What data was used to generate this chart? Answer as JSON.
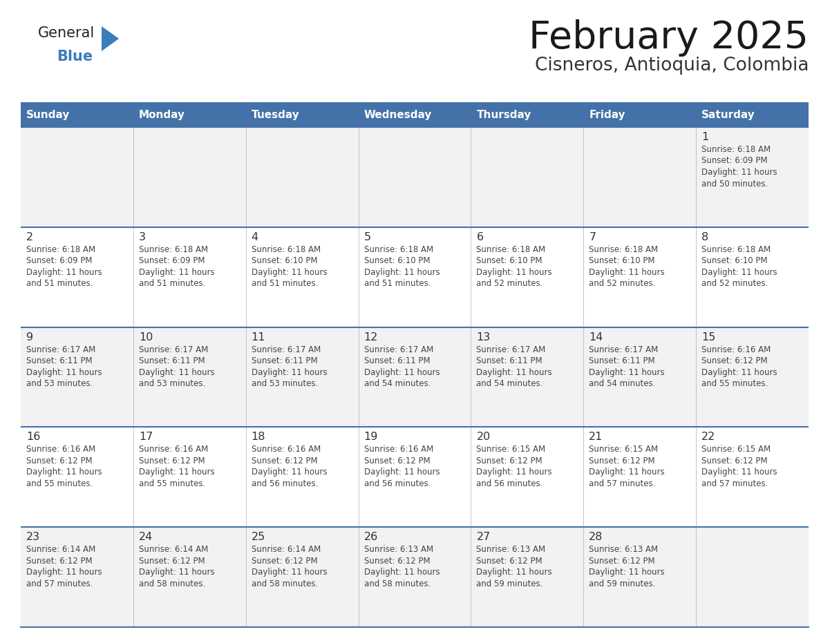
{
  "title": "February 2025",
  "subtitle": "Cisneros, Antioquia, Colombia",
  "header_bg": "#4472a8",
  "header_text": "#ffffff",
  "header_days": [
    "Sunday",
    "Monday",
    "Tuesday",
    "Wednesday",
    "Thursday",
    "Friday",
    "Saturday"
  ],
  "row_bg": [
    "#f2f2f2",
    "#ffffff",
    "#f2f2f2",
    "#ffffff",
    "#f2f2f2"
  ],
  "border_color": "#4472a8",
  "text_color": "#444444",
  "day_num_color": "#333333",
  "logo_general_color": "#222222",
  "logo_blue_color": "#3a7dbf",
  "calendar_data": [
    [
      null,
      null,
      null,
      null,
      null,
      null,
      {
        "day": 1,
        "sunrise": "6:18 AM",
        "sunset": "6:09 PM",
        "daylight": "11 hours and 50 minutes."
      }
    ],
    [
      {
        "day": 2,
        "sunrise": "6:18 AM",
        "sunset": "6:09 PM",
        "daylight": "11 hours and 51 minutes."
      },
      {
        "day": 3,
        "sunrise": "6:18 AM",
        "sunset": "6:09 PM",
        "daylight": "11 hours and 51 minutes."
      },
      {
        "day": 4,
        "sunrise": "6:18 AM",
        "sunset": "6:10 PM",
        "daylight": "11 hours and 51 minutes."
      },
      {
        "day": 5,
        "sunrise": "6:18 AM",
        "sunset": "6:10 PM",
        "daylight": "11 hours and 51 minutes."
      },
      {
        "day": 6,
        "sunrise": "6:18 AM",
        "sunset": "6:10 PM",
        "daylight": "11 hours and 52 minutes."
      },
      {
        "day": 7,
        "sunrise": "6:18 AM",
        "sunset": "6:10 PM",
        "daylight": "11 hours and 52 minutes."
      },
      {
        "day": 8,
        "sunrise": "6:18 AM",
        "sunset": "6:10 PM",
        "daylight": "11 hours and 52 minutes."
      }
    ],
    [
      {
        "day": 9,
        "sunrise": "6:17 AM",
        "sunset": "6:11 PM",
        "daylight": "11 hours and 53 minutes."
      },
      {
        "day": 10,
        "sunrise": "6:17 AM",
        "sunset": "6:11 PM",
        "daylight": "11 hours and 53 minutes."
      },
      {
        "day": 11,
        "sunrise": "6:17 AM",
        "sunset": "6:11 PM",
        "daylight": "11 hours and 53 minutes."
      },
      {
        "day": 12,
        "sunrise": "6:17 AM",
        "sunset": "6:11 PM",
        "daylight": "11 hours and 54 minutes."
      },
      {
        "day": 13,
        "sunrise": "6:17 AM",
        "sunset": "6:11 PM",
        "daylight": "11 hours and 54 minutes."
      },
      {
        "day": 14,
        "sunrise": "6:17 AM",
        "sunset": "6:11 PM",
        "daylight": "11 hours and 54 minutes."
      },
      {
        "day": 15,
        "sunrise": "6:16 AM",
        "sunset": "6:12 PM",
        "daylight": "11 hours and 55 minutes."
      }
    ],
    [
      {
        "day": 16,
        "sunrise": "6:16 AM",
        "sunset": "6:12 PM",
        "daylight": "11 hours and 55 minutes."
      },
      {
        "day": 17,
        "sunrise": "6:16 AM",
        "sunset": "6:12 PM",
        "daylight": "11 hours and 55 minutes."
      },
      {
        "day": 18,
        "sunrise": "6:16 AM",
        "sunset": "6:12 PM",
        "daylight": "11 hours and 56 minutes."
      },
      {
        "day": 19,
        "sunrise": "6:16 AM",
        "sunset": "6:12 PM",
        "daylight": "11 hours and 56 minutes."
      },
      {
        "day": 20,
        "sunrise": "6:15 AM",
        "sunset": "6:12 PM",
        "daylight": "11 hours and 56 minutes."
      },
      {
        "day": 21,
        "sunrise": "6:15 AM",
        "sunset": "6:12 PM",
        "daylight": "11 hours and 57 minutes."
      },
      {
        "day": 22,
        "sunrise": "6:15 AM",
        "sunset": "6:12 PM",
        "daylight": "11 hours and 57 minutes."
      }
    ],
    [
      {
        "day": 23,
        "sunrise": "6:14 AM",
        "sunset": "6:12 PM",
        "daylight": "11 hours and 57 minutes."
      },
      {
        "day": 24,
        "sunrise": "6:14 AM",
        "sunset": "6:12 PM",
        "daylight": "11 hours and 58 minutes."
      },
      {
        "day": 25,
        "sunrise": "6:14 AM",
        "sunset": "6:12 PM",
        "daylight": "11 hours and 58 minutes."
      },
      {
        "day": 26,
        "sunrise": "6:13 AM",
        "sunset": "6:12 PM",
        "daylight": "11 hours and 58 minutes."
      },
      {
        "day": 27,
        "sunrise": "6:13 AM",
        "sunset": "6:12 PM",
        "daylight": "11 hours and 59 minutes."
      },
      {
        "day": 28,
        "sunrise": "6:13 AM",
        "sunset": "6:12 PM",
        "daylight": "11 hours and 59 minutes."
      },
      null
    ]
  ]
}
